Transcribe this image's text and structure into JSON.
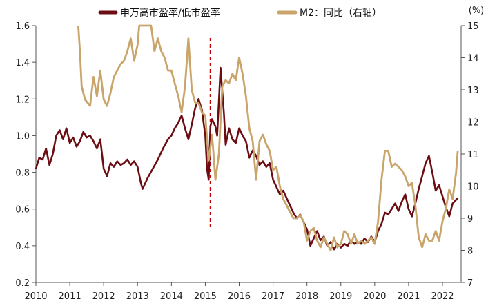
{
  "chart_data": {
    "type": "line",
    "legend_position": "top-center",
    "grid": false,
    "x_axis": {
      "range": [
        2010,
        2022.55
      ],
      "tick_values": [
        2010,
        2011,
        2012,
        2013,
        2014,
        2015,
        2016,
        2017,
        2018,
        2019,
        2020,
        2021,
        2022
      ],
      "tick_labels": [
        "2010",
        "2011",
        "2012",
        "2013",
        "2014",
        "2015",
        "2016",
        "2017",
        "2018",
        "2019",
        "2020",
        "2021",
        "2022"
      ]
    },
    "y_left": {
      "range": [
        0.2,
        1.6
      ],
      "ticks": [
        "0.2",
        "0.4",
        "0.6",
        "0.8",
        "1.0",
        "1.2",
        "1.4",
        "1.6"
      ]
    },
    "y_right": {
      "unit_label": "(%)",
      "range": [
        7,
        15
      ],
      "ticks": [
        "7",
        "8",
        "9",
        "10",
        "11",
        "12",
        "13",
        "14",
        "15"
      ]
    },
    "reference_line": {
      "x": 2015.15,
      "style": "dashed",
      "color": "#c00000"
    },
    "series": [
      {
        "name": "申万高市盈率/低市盈率",
        "axis": "left",
        "color": "#6b0d12",
        "points": [
          [
            2010.0,
            0.82
          ],
          [
            2010.1,
            0.88
          ],
          [
            2010.2,
            0.87
          ],
          [
            2010.3,
            0.93
          ],
          [
            2010.4,
            0.84
          ],
          [
            2010.5,
            0.9
          ],
          [
            2010.6,
            1.0
          ],
          [
            2010.7,
            1.03
          ],
          [
            2010.8,
            0.98
          ],
          [
            2010.9,
            1.04
          ],
          [
            2011.0,
            0.96
          ],
          [
            2011.1,
            0.99
          ],
          [
            2011.2,
            0.94
          ],
          [
            2011.3,
            0.97
          ],
          [
            2011.4,
            1.02
          ],
          [
            2011.5,
            0.99
          ],
          [
            2011.6,
            1.0
          ],
          [
            2011.7,
            0.97
          ],
          [
            2011.8,
            0.93
          ],
          [
            2011.9,
            0.98
          ],
          [
            2012.0,
            0.82
          ],
          [
            2012.1,
            0.78
          ],
          [
            2012.2,
            0.85
          ],
          [
            2012.3,
            0.83
          ],
          [
            2012.4,
            0.86
          ],
          [
            2012.5,
            0.84
          ],
          [
            2012.6,
            0.85
          ],
          [
            2012.7,
            0.87
          ],
          [
            2012.8,
            0.84
          ],
          [
            2012.9,
            0.86
          ],
          [
            2013.0,
            0.83
          ],
          [
            2013.1,
            0.74
          ],
          [
            2013.15,
            0.71
          ],
          [
            2013.3,
            0.77
          ],
          [
            2013.45,
            0.82
          ],
          [
            2013.6,
            0.87
          ],
          [
            2013.75,
            0.93
          ],
          [
            2013.9,
            0.98
          ],
          [
            2014.0,
            1.0
          ],
          [
            2014.1,
            1.04
          ],
          [
            2014.2,
            1.07
          ],
          [
            2014.3,
            1.11
          ],
          [
            2014.4,
            1.04
          ],
          [
            2014.5,
            0.98
          ],
          [
            2014.6,
            1.06
          ],
          [
            2014.7,
            1.15
          ],
          [
            2014.8,
            1.2
          ],
          [
            2014.9,
            1.14
          ],
          [
            2015.0,
            1.0
          ],
          [
            2015.05,
            0.82
          ],
          [
            2015.1,
            0.76
          ],
          [
            2015.15,
            1.05
          ],
          [
            2015.2,
            1.09
          ],
          [
            2015.3,
            1.05
          ],
          [
            2015.35,
            1.0
          ],
          [
            2015.45,
            1.37
          ],
          [
            2015.55,
            1.12
          ],
          [
            2015.6,
            0.95
          ],
          [
            2015.7,
            1.04
          ],
          [
            2015.8,
            0.98
          ],
          [
            2015.9,
            0.96
          ],
          [
            2016.0,
            1.04
          ],
          [
            2016.1,
            1.0
          ],
          [
            2016.2,
            0.97
          ],
          [
            2016.3,
            0.88
          ],
          [
            2016.4,
            0.92
          ],
          [
            2016.5,
            0.89
          ],
          [
            2016.6,
            0.84
          ],
          [
            2016.7,
            0.86
          ],
          [
            2016.8,
            0.83
          ],
          [
            2016.9,
            0.85
          ],
          [
            2017.0,
            0.76
          ],
          [
            2017.1,
            0.72
          ],
          [
            2017.2,
            0.68
          ],
          [
            2017.3,
            0.7
          ],
          [
            2017.4,
            0.66
          ],
          [
            2017.5,
            0.62
          ],
          [
            2017.6,
            0.58
          ],
          [
            2017.7,
            0.55
          ],
          [
            2017.8,
            0.57
          ],
          [
            2017.9,
            0.53
          ],
          [
            2018.0,
            0.49
          ],
          [
            2018.1,
            0.4
          ],
          [
            2018.2,
            0.44
          ],
          [
            2018.3,
            0.48
          ],
          [
            2018.4,
            0.43
          ],
          [
            2018.5,
            0.45
          ],
          [
            2018.6,
            0.4
          ],
          [
            2018.7,
            0.42
          ],
          [
            2018.8,
            0.38
          ],
          [
            2018.9,
            0.41
          ],
          [
            2019.0,
            0.39
          ],
          [
            2019.1,
            0.41
          ],
          [
            2019.2,
            0.4
          ],
          [
            2019.3,
            0.43
          ],
          [
            2019.4,
            0.41
          ],
          [
            2019.5,
            0.42
          ],
          [
            2019.6,
            0.41
          ],
          [
            2019.7,
            0.44
          ],
          [
            2019.8,
            0.42
          ],
          [
            2019.9,
            0.45
          ],
          [
            2020.0,
            0.42
          ],
          [
            2020.1,
            0.48
          ],
          [
            2020.2,
            0.52
          ],
          [
            2020.3,
            0.58
          ],
          [
            2020.4,
            0.57
          ],
          [
            2020.5,
            0.6
          ],
          [
            2020.6,
            0.63
          ],
          [
            2020.7,
            0.59
          ],
          [
            2020.8,
            0.64
          ],
          [
            2020.9,
            0.68
          ],
          [
            2021.0,
            0.6
          ],
          [
            2021.1,
            0.56
          ],
          [
            2021.2,
            0.63
          ],
          [
            2021.3,
            0.71
          ],
          [
            2021.4,
            0.78
          ],
          [
            2021.5,
            0.85
          ],
          [
            2021.6,
            0.89
          ],
          [
            2021.7,
            0.8
          ],
          [
            2021.8,
            0.7
          ],
          [
            2021.9,
            0.73
          ],
          [
            2022.0,
            0.67
          ],
          [
            2022.1,
            0.61
          ],
          [
            2022.2,
            0.56
          ],
          [
            2022.3,
            0.63
          ],
          [
            2022.45,
            0.66
          ]
        ]
      },
      {
        "name": "M2：同比（右轴）",
        "axis": "right",
        "color": "#c9a46b",
        "points": [
          [
            2011.25,
            15.0
          ],
          [
            2011.3,
            14.2
          ],
          [
            2011.35,
            13.1
          ],
          [
            2011.45,
            12.7
          ],
          [
            2011.6,
            12.5
          ],
          [
            2011.7,
            13.4
          ],
          [
            2011.8,
            12.8
          ],
          [
            2011.9,
            13.6
          ],
          [
            2012.0,
            12.7
          ],
          [
            2012.1,
            12.5
          ],
          [
            2012.2,
            12.9
          ],
          [
            2012.3,
            13.4
          ],
          [
            2012.4,
            13.6
          ],
          [
            2012.5,
            13.8
          ],
          [
            2012.6,
            13.9
          ],
          [
            2012.7,
            14.2
          ],
          [
            2012.8,
            14.6
          ],
          [
            2012.9,
            13.9
          ],
          [
            2013.0,
            14.4
          ],
          [
            2013.05,
            15.0
          ],
          [
            2013.4,
            15.0
          ],
          [
            2013.5,
            14.2
          ],
          [
            2013.6,
            14.6
          ],
          [
            2013.7,
            14.2
          ],
          [
            2013.8,
            14.0
          ],
          [
            2013.9,
            13.6
          ],
          [
            2014.0,
            13.6
          ],
          [
            2014.1,
            13.2
          ],
          [
            2014.2,
            12.8
          ],
          [
            2014.3,
            12.3
          ],
          [
            2014.4,
            13.1
          ],
          [
            2014.5,
            14.6
          ],
          [
            2014.6,
            13.0
          ],
          [
            2014.7,
            12.6
          ],
          [
            2014.8,
            12.6
          ],
          [
            2014.9,
            12.3
          ],
          [
            2015.0,
            12.2
          ],
          [
            2015.1,
            10.8
          ],
          [
            2015.2,
            11.6
          ],
          [
            2015.3,
            10.2
          ],
          [
            2015.4,
            11.0
          ],
          [
            2015.5,
            13.1
          ],
          [
            2015.6,
            13.3
          ],
          [
            2015.7,
            13.2
          ],
          [
            2015.8,
            13.5
          ],
          [
            2015.9,
            13.3
          ],
          [
            2016.0,
            14.0
          ],
          [
            2016.1,
            13.5
          ],
          [
            2016.2,
            12.8
          ],
          [
            2016.3,
            11.8
          ],
          [
            2016.4,
            11.4
          ],
          [
            2016.5,
            10.2
          ],
          [
            2016.6,
            11.4
          ],
          [
            2016.7,
            11.6
          ],
          [
            2016.8,
            11.3
          ],
          [
            2016.9,
            11.1
          ],
          [
            2017.0,
            10.5
          ],
          [
            2017.1,
            10.6
          ],
          [
            2017.2,
            10.0
          ],
          [
            2017.3,
            9.6
          ],
          [
            2017.4,
            9.4
          ],
          [
            2017.5,
            9.2
          ],
          [
            2017.6,
            9.0
          ],
          [
            2017.7,
            9.0
          ],
          [
            2017.8,
            9.1
          ],
          [
            2017.9,
            8.9
          ],
          [
            2018.0,
            8.3
          ],
          [
            2018.1,
            8.6
          ],
          [
            2018.2,
            8.7
          ],
          [
            2018.3,
            8.3
          ],
          [
            2018.4,
            8.1
          ],
          [
            2018.5,
            8.4
          ],
          [
            2018.6,
            8.2
          ],
          [
            2018.7,
            8.0
          ],
          [
            2018.8,
            8.4
          ],
          [
            2018.9,
            8.1
          ],
          [
            2019.0,
            8.2
          ],
          [
            2019.1,
            8.6
          ],
          [
            2019.2,
            8.5
          ],
          [
            2019.3,
            8.2
          ],
          [
            2019.4,
            8.5
          ],
          [
            2019.5,
            8.2
          ],
          [
            2019.6,
            8.3
          ],
          [
            2019.7,
            8.2
          ],
          [
            2019.8,
            8.3
          ],
          [
            2019.9,
            8.4
          ],
          [
            2020.0,
            8.2
          ],
          [
            2020.1,
            8.9
          ],
          [
            2020.2,
            10.2
          ],
          [
            2020.3,
            11.1
          ],
          [
            2020.4,
            11.1
          ],
          [
            2020.5,
            10.6
          ],
          [
            2020.6,
            10.7
          ],
          [
            2020.7,
            10.6
          ],
          [
            2020.8,
            10.5
          ],
          [
            2020.9,
            10.3
          ],
          [
            2021.0,
            10.0
          ],
          [
            2021.1,
            10.1
          ],
          [
            2021.2,
            9.4
          ],
          [
            2021.3,
            8.4
          ],
          [
            2021.4,
            8.1
          ],
          [
            2021.5,
            8.5
          ],
          [
            2021.6,
            8.3
          ],
          [
            2021.7,
            8.3
          ],
          [
            2021.8,
            8.6
          ],
          [
            2021.9,
            8.3
          ],
          [
            2022.0,
            8.9
          ],
          [
            2022.1,
            9.3
          ],
          [
            2022.2,
            9.9
          ],
          [
            2022.3,
            9.6
          ],
          [
            2022.4,
            10.4
          ],
          [
            2022.45,
            11.1
          ]
        ]
      }
    ]
  }
}
